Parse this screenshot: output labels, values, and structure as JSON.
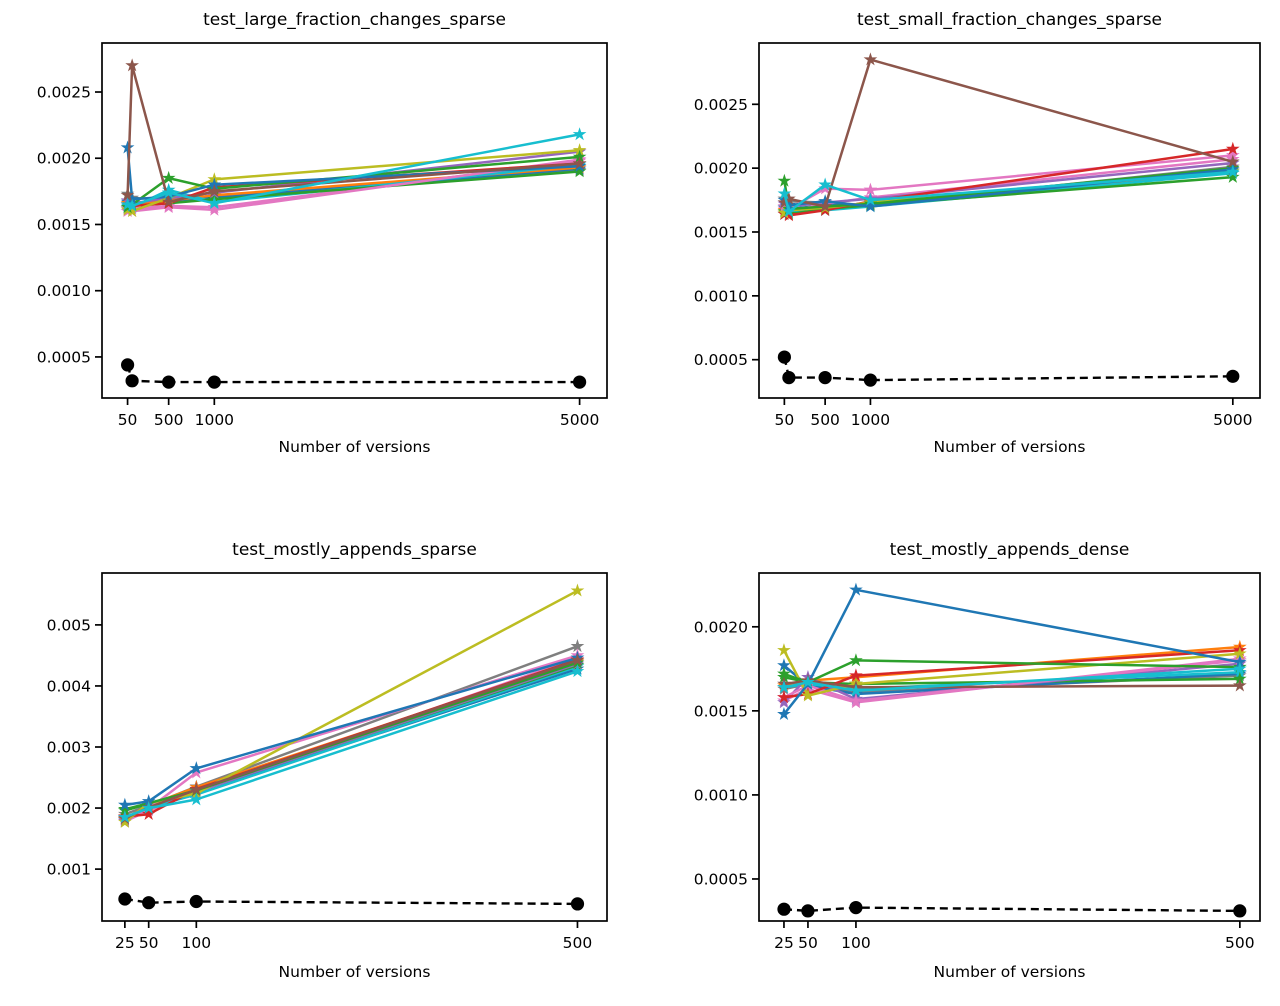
{
  "figure": {
    "background": "#ffffff",
    "text_color": "#000000",
    "x_axis_label": "Number of versions",
    "baseline_color": "#000000",
    "marker_styles": {
      "series": "star",
      "baseline": "circle"
    }
  },
  "chart_data": [
    {
      "type": "line",
      "title": "test_large_fraction_changes_sparse",
      "xlabel": "Number of versions",
      "x": [
        50,
        100,
        500,
        1000,
        5000
      ],
      "xlim": [
        -230,
        5300
      ],
      "ylim": [
        0.00019,
        0.00287
      ],
      "xticks": [
        {
          "v": 50,
          "label": "50"
        },
        {
          "v": 500,
          "label": "500"
        },
        {
          "v": 1000,
          "label": "1000"
        },
        {
          "v": 5000,
          "label": "5000"
        }
      ],
      "yticks": [
        {
          "v": 0.0005,
          "label": "0.0005"
        },
        {
          "v": 0.001,
          "label": "0.0010"
        },
        {
          "v": 0.0015,
          "label": "0.0015"
        },
        {
          "v": 0.002,
          "label": "0.0020"
        },
        {
          "v": 0.0025,
          "label": "0.0025"
        }
      ],
      "series": [
        {
          "name": "gray",
          "color": "#7f7f7f",
          "values": [
            0.00173,
            0.0017,
            0.00169,
            0.00171,
            0.00191
          ]
        },
        {
          "name": "blue-b",
          "color": "#1f77b4",
          "values": [
            0.00167,
            0.00166,
            0.00168,
            0.0017,
            0.00192
          ]
        },
        {
          "name": "pink-b",
          "color": "#e377c2",
          "values": [
            0.0016,
            0.00162,
            0.00164,
            0.00163,
            0.00198
          ]
        },
        {
          "name": "orange",
          "color": "#ff7f0e",
          "values": [
            0.00166,
            0.00165,
            0.00168,
            0.00172,
            0.00193
          ]
        },
        {
          "name": "cyan-b",
          "color": "#17becf",
          "values": [
            0.00164,
            0.00163,
            0.00176,
            0.00167,
            0.00195
          ]
        },
        {
          "name": "green-b",
          "color": "#2ca02c",
          "values": [
            0.00162,
            0.00164,
            0.00166,
            0.00169,
            0.0019
          ]
        },
        {
          "name": "purple",
          "color": "#9467bd",
          "values": [
            0.00168,
            0.00166,
            0.0017,
            0.00174,
            0.00205
          ]
        },
        {
          "name": "pink",
          "color": "#e377c2",
          "values": [
            0.00162,
            0.0016,
            0.00163,
            0.00161,
            0.00199
          ]
        },
        {
          "name": "red",
          "color": "#d62728",
          "values": [
            0.00165,
            0.00164,
            0.00166,
            0.00178,
            0.00196
          ]
        },
        {
          "name": "olive",
          "color": "#bcbd22",
          "values": [
            0.00161,
            0.0016,
            0.0017,
            0.00184,
            0.00206
          ]
        },
        {
          "name": "green",
          "color": "#2ca02c",
          "values": [
            0.00163,
            0.00165,
            0.00185,
            0.00177,
            0.00201
          ]
        },
        {
          "name": "blue",
          "color": "#1f77b4",
          "values": [
            0.00208,
            0.00169,
            0.00171,
            0.0018,
            0.00194
          ]
        },
        {
          "name": "brown",
          "color": "#8c564b",
          "values": [
            0.00172,
            0.0027,
            0.00167,
            0.00175,
            0.00196
          ]
        },
        {
          "name": "cyan",
          "color": "#17becf",
          "values": [
            0.00165,
            0.00164,
            0.00174,
            0.00166,
            0.00218
          ]
        }
      ],
      "baseline": {
        "name": "baseline-dashed-black",
        "color": "#000000",
        "values": [
          0.00044,
          0.00032,
          0.00031,
          0.00031,
          0.00031
        ]
      }
    },
    {
      "type": "line",
      "title": "test_small_fraction_changes_sparse",
      "xlabel": "Number of versions",
      "x": [
        50,
        100,
        500,
        1000,
        5000
      ],
      "xlim": [
        -230,
        5300
      ],
      "ylim": [
        0.0002,
        0.00298
      ],
      "xticks": [
        {
          "v": 50,
          "label": "50"
        },
        {
          "v": 500,
          "label": "500"
        },
        {
          "v": 1000,
          "label": "1000"
        },
        {
          "v": 5000,
          "label": "5000"
        }
      ],
      "yticks": [
        {
          "v": 0.0005,
          "label": "0.0005"
        },
        {
          "v": 0.001,
          "label": "0.0010"
        },
        {
          "v": 0.0015,
          "label": "0.0015"
        },
        {
          "v": 0.002,
          "label": "0.0020"
        },
        {
          "v": 0.0025,
          "label": "0.0025"
        }
      ],
      "series": [
        {
          "name": "gray",
          "color": "#7f7f7f",
          "values": [
            0.00176,
            0.00174,
            0.00173,
            0.00171,
            0.00201
          ]
        },
        {
          "name": "blue-b",
          "color": "#1f77b4",
          "values": [
            0.00169,
            0.00168,
            0.00171,
            0.00172,
            0.00198
          ]
        },
        {
          "name": "pink-b",
          "color": "#e377c2",
          "values": [
            0.00168,
            0.00166,
            0.00172,
            0.00177,
            0.00207
          ]
        },
        {
          "name": "orange",
          "color": "#ff7f0e",
          "values": [
            0.00167,
            0.00166,
            0.00169,
            0.00173,
            0.00197
          ]
        },
        {
          "name": "cyan-b",
          "color": "#17becf",
          "values": [
            0.00164,
            0.00165,
            0.00167,
            0.0017,
            0.00196
          ]
        },
        {
          "name": "green-b",
          "color": "#2ca02c",
          "values": [
            0.00166,
            0.00164,
            0.00168,
            0.00171,
            0.00193
          ]
        },
        {
          "name": "purple",
          "color": "#9467bd",
          "values": [
            0.00172,
            0.0017,
            0.00173,
            0.00176,
            0.00204
          ]
        },
        {
          "name": "pink",
          "color": "#e377c2",
          "values": [
            0.0017,
            0.00168,
            0.00184,
            0.00183,
            0.0021
          ]
        },
        {
          "name": "red",
          "color": "#d62728",
          "values": [
            0.00164,
            0.00163,
            0.00167,
            0.00174,
            0.00215
          ]
        },
        {
          "name": "olive",
          "color": "#bcbd22",
          "values": [
            0.00165,
            0.00167,
            0.00169,
            0.00173,
            0.00198
          ]
        },
        {
          "name": "green",
          "color": "#2ca02c",
          "values": [
            0.0019,
            0.00168,
            0.0017,
            0.00172,
            0.002
          ]
        },
        {
          "name": "blue",
          "color": "#1f77b4",
          "values": [
            0.00175,
            0.00171,
            0.00174,
            0.0017,
            0.00199
          ]
        },
        {
          "name": "brown",
          "color": "#8c564b",
          "values": [
            0.00173,
            0.00176,
            0.0017,
            0.00285,
            0.00205
          ]
        },
        {
          "name": "cyan",
          "color": "#17becf",
          "values": [
            0.0018,
            0.00166,
            0.00187,
            0.00175,
            0.00197
          ]
        }
      ],
      "baseline": {
        "name": "baseline-dashed-black",
        "color": "#000000",
        "values": [
          0.00052,
          0.00036,
          0.00036,
          0.00034,
          0.00037
        ]
      }
    },
    {
      "type": "line",
      "title": "test_mostly_appends_sparse",
      "xlabel": "Number of versions",
      "x": [
        25,
        50,
        100,
        500
      ],
      "xlim": [
        1,
        531
      ],
      "ylim": [
        0.00015,
        0.00585
      ],
      "xticks": [
        {
          "v": 25,
          "label": "25"
        },
        {
          "v": 50,
          "label": "50"
        },
        {
          "v": 100,
          "label": "100"
        },
        {
          "v": 500,
          "label": "500"
        }
      ],
      "yticks": [
        {
          "v": 0.001,
          "label": "0.001"
        },
        {
          "v": 0.002,
          "label": "0.002"
        },
        {
          "v": 0.003,
          "label": "0.003"
        },
        {
          "v": 0.004,
          "label": "0.004"
        },
        {
          "v": 0.005,
          "label": "0.005"
        }
      ],
      "series": [
        {
          "name": "gray",
          "color": "#7f7f7f",
          "values": [
            0.0019,
            0.00204,
            0.00235,
            0.00465
          ]
        },
        {
          "name": "blue-b",
          "color": "#1f77b4",
          "values": [
            0.00181,
            0.00198,
            0.00225,
            0.00428
          ]
        },
        {
          "name": "pink-b",
          "color": "#e377c2",
          "values": [
            0.00178,
            0.00196,
            0.00226,
            0.00446
          ]
        },
        {
          "name": "orange",
          "color": "#ff7f0e",
          "values": [
            0.00182,
            0.00205,
            0.00234,
            0.0044
          ]
        },
        {
          "name": "cyan-b",
          "color": "#17becf",
          "values": [
            0.00184,
            0.00201,
            0.00222,
            0.00432
          ]
        },
        {
          "name": "green-b",
          "color": "#2ca02c",
          "values": [
            0.00196,
            0.00207,
            0.00228,
            0.00434
          ]
        },
        {
          "name": "purple",
          "color": "#9467bd",
          "values": [
            0.00179,
            0.00203,
            0.00227,
            0.00436
          ]
        },
        {
          "name": "pink",
          "color": "#e377c2",
          "values": [
            0.00184,
            0.00199,
            0.00258,
            0.0045
          ]
        },
        {
          "name": "red",
          "color": "#d62728",
          "values": [
            0.00186,
            0.0019,
            0.00231,
            0.00443
          ]
        },
        {
          "name": "olive",
          "color": "#bcbd22",
          "values": [
            0.00177,
            0.00208,
            0.00224,
            0.00556
          ]
        },
        {
          "name": "green",
          "color": "#2ca02c",
          "values": [
            0.00198,
            0.00208,
            0.00229,
            0.00438
          ]
        },
        {
          "name": "blue",
          "color": "#1f77b4",
          "values": [
            0.00205,
            0.00211,
            0.00265,
            0.00446
          ]
        },
        {
          "name": "brown",
          "color": "#8c564b",
          "values": [
            0.00183,
            0.00201,
            0.0023,
            0.00442
          ]
        },
        {
          "name": "cyan",
          "color": "#17becf",
          "values": [
            0.00185,
            0.002,
            0.00214,
            0.00424
          ]
        }
      ],
      "baseline": {
        "name": "baseline-dashed-black",
        "color": "#000000",
        "values": [
          0.00051,
          0.00045,
          0.00047,
          0.00043
        ]
      }
    },
    {
      "type": "line",
      "title": "test_mostly_appends_dense",
      "xlabel": "Number of versions",
      "x": [
        25,
        50,
        100,
        500
      ],
      "xlim": [
        -1,
        521
      ],
      "ylim": [
        0.00025,
        0.00232
      ],
      "xticks": [
        {
          "v": 25,
          "label": "25"
        },
        {
          "v": 50,
          "label": "50"
        },
        {
          "v": 100,
          "label": "100"
        },
        {
          "v": 500,
          "label": "500"
        }
      ],
      "yticks": [
        {
          "v": 0.0005,
          "label": "0.0005"
        },
        {
          "v": 0.001,
          "label": "0.0010"
        },
        {
          "v": 0.0015,
          "label": "0.0015"
        },
        {
          "v": 0.002,
          "label": "0.0020"
        }
      ],
      "series": [
        {
          "name": "gray",
          "color": "#7f7f7f",
          "values": [
            0.00163,
            0.00166,
            0.00161,
            0.00171
          ]
        },
        {
          "name": "blue-b",
          "color": "#1f77b4",
          "values": [
            0.00177,
            0.00165,
            0.0016,
            0.00172
          ]
        },
        {
          "name": "pink-b",
          "color": "#e377c2",
          "values": [
            0.00156,
            0.00163,
            0.00155,
            0.00181
          ]
        },
        {
          "name": "orange",
          "color": "#ff7f0e",
          "values": [
            0.00165,
            0.00168,
            0.0017,
            0.00188
          ]
        },
        {
          "name": "cyan-b",
          "color": "#17becf",
          "values": [
            0.00164,
            0.00166,
            0.00163,
            0.00173
          ]
        },
        {
          "name": "green-b",
          "color": "#2ca02c",
          "values": [
            0.0017,
            0.00167,
            0.00166,
            0.00169
          ]
        },
        {
          "name": "purple",
          "color": "#9467bd",
          "values": [
            0.00155,
            0.0017,
            0.00157,
            0.00178
          ]
        },
        {
          "name": "pink",
          "color": "#e377c2",
          "values": [
            0.00158,
            0.00165,
            0.00156,
            0.0018
          ]
        },
        {
          "name": "red",
          "color": "#d62728",
          "values": [
            0.00158,
            0.0016,
            0.00171,
            0.00186
          ]
        },
        {
          "name": "olive",
          "color": "#bcbd22",
          "values": [
            0.00186,
            0.00159,
            0.00166,
            0.00184
          ]
        },
        {
          "name": "green",
          "color": "#2ca02c",
          "values": [
            0.00172,
            0.00167,
            0.0018,
            0.00176
          ]
        },
        {
          "name": "blue",
          "color": "#1f77b4",
          "values": [
            0.00148,
            0.00166,
            0.00222,
            0.00179
          ]
        },
        {
          "name": "brown",
          "color": "#8c564b",
          "values": [
            0.00166,
            0.00168,
            0.00164,
            0.00165
          ]
        },
        {
          "name": "cyan",
          "color": "#17becf",
          "values": [
            0.00164,
            0.00167,
            0.00162,
            0.00175
          ]
        }
      ],
      "baseline": {
        "name": "baseline-dashed-black",
        "color": "#000000",
        "values": [
          0.00032,
          0.00031,
          0.00033,
          0.00031
        ]
      }
    }
  ]
}
